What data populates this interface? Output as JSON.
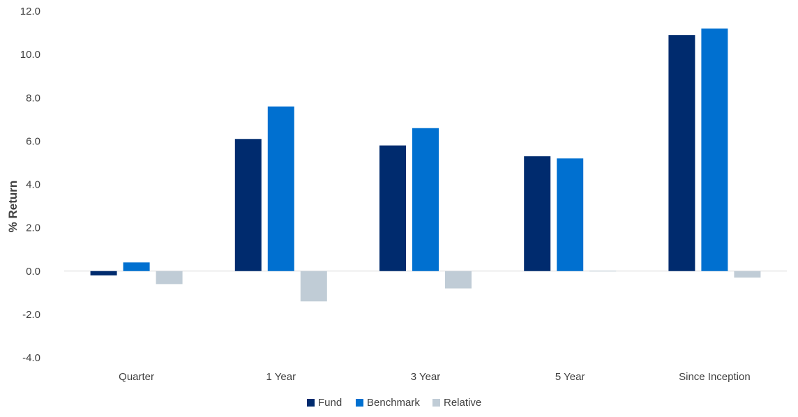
{
  "chart_data": {
    "type": "bar",
    "title": "",
    "xlabel": "",
    "ylabel": "% Return",
    "ylim": [
      -4.0,
      12.0
    ],
    "ytick_step": 2.0,
    "y_ticks": [
      "12.0",
      "10.0",
      "8.0",
      "6.0",
      "4.0",
      "2.0",
      "0.0",
      "-2.0",
      "-4.0"
    ],
    "grid": false,
    "legend_position": "bottom",
    "categories": [
      "Quarter",
      "1 Year",
      "3 Year",
      "5 Year",
      "Since Inception"
    ],
    "series": [
      {
        "name": "Fund",
        "color": "#002B6E",
        "values": [
          -0.2,
          6.1,
          5.8,
          5.3,
          10.9
        ]
      },
      {
        "name": "Benchmark",
        "color": "#0070D0",
        "values": [
          0.4,
          7.6,
          6.6,
          5.2,
          11.2
        ]
      },
      {
        "name": "Relative",
        "color": "#C0CCD6",
        "values": [
          -0.6,
          -1.4,
          -0.8,
          0.0,
          -0.3
        ]
      }
    ]
  }
}
